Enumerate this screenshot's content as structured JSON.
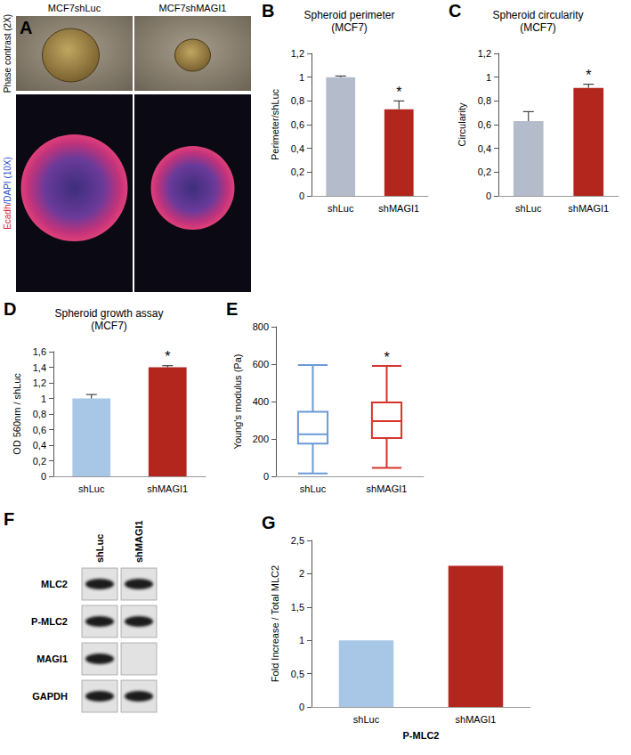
{
  "images": {
    "panel": "A",
    "columns": [
      "MCF7shLuc",
      "MCF7shMAGI1"
    ],
    "rows": [
      "Phase contrast (2X)",
      "Ecadh/DAPI (10X)"
    ]
  },
  "blot": {
    "panel": "F",
    "lanes": [
      "shLuc",
      "shMAGI1"
    ],
    "rows": [
      "MLC2",
      "P-MLC2",
      "MAGI1",
      "GAPDH"
    ],
    "bands": [
      [
        true,
        true
      ],
      [
        true,
        true
      ],
      [
        true,
        false
      ],
      [
        true,
        true
      ]
    ]
  },
  "chart_data": [
    {
      "panel": "B",
      "type": "bar",
      "title": "Spheroid perimeter",
      "subtitle": "(MCF7)",
      "y_label": "Perimeter/shLuc",
      "categories": [
        "shLuc",
        "shMAGI1"
      ],
      "values": [
        1.0,
        0.73
      ],
      "errors": [
        0.01,
        0.07
      ],
      "colors": [
        "#b4bccb",
        "#b3261e"
      ],
      "annotations": [
        {
          "category": "shMAGI1",
          "text": "*"
        }
      ],
      "ylim": [
        0,
        1.2
      ],
      "yticks": [
        0,
        {
          "value": 0.2,
          "label": "0,2"
        },
        {
          "value": 0.4,
          "label": "0,4"
        },
        {
          "value": 0.6,
          "label": "0,6"
        },
        {
          "value": 0.8,
          "label": "0,8"
        },
        1,
        {
          "value": 1.2,
          "label": "1,2"
        }
      ],
      "grid": false
    },
    {
      "panel": "C",
      "type": "bar",
      "title": "Spheroid circularity",
      "subtitle": "(MCF7)",
      "y_label": "Circularity",
      "categories": [
        "shLuc",
        "shMAGI1"
      ],
      "values": [
        0.63,
        0.91
      ],
      "errors": [
        0.08,
        0.03
      ],
      "colors": [
        "#b4bccb",
        "#b3261e"
      ],
      "annotations": [
        {
          "category": "shMAGI1",
          "text": "*"
        }
      ],
      "ylim": [
        0,
        1.2
      ],
      "yticks": [
        0,
        {
          "value": 0.2,
          "label": "0,2"
        },
        {
          "value": 0.4,
          "label": "0,4"
        },
        {
          "value": 0.6,
          "label": "0,6"
        },
        {
          "value": 0.8,
          "label": "0,8"
        },
        1,
        {
          "value": 1.2,
          "label": "1,2"
        }
      ],
      "grid": false
    },
    {
      "panel": "D",
      "type": "bar",
      "title": "Spheroid growth assay",
      "subtitle": "(MCF7)",
      "y_label": "OD 560nm / shLuc",
      "categories": [
        "shLuc",
        "shMAGI1"
      ],
      "values": [
        1.0,
        1.4
      ],
      "errors": [
        0.05,
        0.02
      ],
      "colors": [
        "#a8c6e6",
        "#b3261e"
      ],
      "annotations": [
        {
          "category": "shMAGI1",
          "text": "*"
        }
      ],
      "ylim": [
        0,
        1.6
      ],
      "yticks": [
        0,
        {
          "value": 0.2,
          "label": "0,2"
        },
        {
          "value": 0.4,
          "label": "0,4"
        },
        {
          "value": 0.6,
          "label": "0,6"
        },
        {
          "value": 0.8,
          "label": "0,8"
        },
        1,
        {
          "value": 1.2,
          "label": "1,2"
        },
        {
          "value": 1.4,
          "label": "1,4"
        },
        {
          "value": 1.6,
          "label": "1,6"
        }
      ],
      "grid": false
    },
    {
      "panel": "E",
      "type": "box",
      "y_label": "Young's modulus (Pa)",
      "categories": [
        "shLuc",
        "shMAGI1"
      ],
      "boxes": [
        {
          "min": 15,
          "q1": 175,
          "median": 225,
          "q3": 345,
          "max": 595
        },
        {
          "min": 45,
          "q1": 205,
          "median": 295,
          "q3": 395,
          "max": 590
        }
      ],
      "colors": [
        "#6a9ad6",
        "#d8342c"
      ],
      "annotations": [
        {
          "category": "shMAGI1",
          "text": "*"
        }
      ],
      "ylim": [
        0,
        800
      ],
      "yticks": [
        0,
        200,
        400,
        600,
        800
      ],
      "grid": false
    },
    {
      "panel": "G",
      "type": "bar",
      "y_label": "Fold Increase / Total MLC2",
      "x_label": "P-MLC2",
      "categories": [
        "shLuc",
        "shMAGI1"
      ],
      "values": [
        1.0,
        2.12
      ],
      "colors": [
        "#a8c6e6",
        "#b3261e"
      ],
      "ylim": [
        0,
        2.5
      ],
      "yticks": [
        0,
        {
          "value": 0.5,
          "label": "0,5"
        },
        1,
        {
          "value": 1.5,
          "label": "1,5"
        },
        2,
        {
          "value": 2.5,
          "label": "2,5"
        }
      ],
      "grid": false
    }
  ]
}
